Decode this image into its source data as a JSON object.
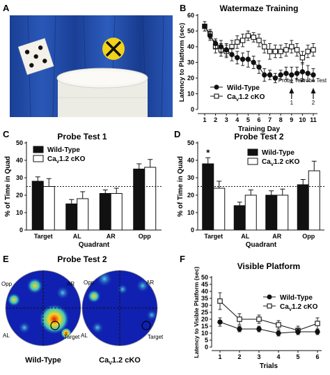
{
  "panel_letters": {
    "A": "A",
    "B": "B",
    "C": "C",
    "D": "D",
    "E": "E",
    "F": "F"
  },
  "colors": {
    "black": "#111111",
    "white": "#ffffff",
    "curtain": "#1f4aa3",
    "cross_sign": "#f2d21a"
  },
  "heatmap": {
    "title": "Probe Test 2",
    "quadrant_labels": {
      "opp": "Opp",
      "ar": "AR",
      "al": "AL",
      "target": "Target"
    },
    "captions": {
      "wt": "Wild-Type",
      "ko_pre": "Ca",
      "ko_sub": "V",
      "ko_post": "1.2 cKO"
    },
    "colors": {
      "background": "#1020b0",
      "hot": "#e21b12",
      "warm": "#f6d61b",
      "mid": "#3cc7c0"
    }
  },
  "chart_data": [
    {
      "id": "B",
      "type": "line",
      "title": "Watermaze Training",
      "xlabel": "Training Day",
      "ylabel": "Latency to Platform (sec)",
      "ylim": [
        0,
        60
      ],
      "xlim": [
        1,
        11
      ],
      "y_ticks": [
        0,
        10,
        20,
        30,
        40,
        50,
        60
      ],
      "x": [
        1,
        1.5,
        2,
        2.5,
        3,
        3.5,
        4,
        4.5,
        5,
        5.5,
        6,
        6.5,
        7,
        7.5,
        8,
        8.5,
        9,
        9.5,
        10,
        10.5,
        11
      ],
      "x_tick_labels": [
        "1",
        "2",
        "3",
        "4",
        "5",
        "6",
        "7",
        "8",
        "9",
        "10",
        "11"
      ],
      "series": [
        {
          "name": "Wild-Type",
          "marker": "filled-circle",
          "values": [
            53,
            47,
            42,
            40,
            38,
            35,
            33,
            32,
            32,
            30,
            27,
            22,
            22,
            20,
            22,
            23,
            22,
            23,
            24,
            23,
            22
          ],
          "errors": [
            3,
            3,
            3,
            4,
            4,
            4,
            4,
            4,
            5,
            4,
            4,
            4,
            3,
            3,
            3,
            4,
            5,
            4,
            6,
            5,
            4
          ]
        },
        {
          "name_pre": "Ca",
          "name_sub": "V",
          "name_post": "1.2 cKO",
          "marker": "open-square",
          "values": [
            53,
            48,
            40,
            38,
            37,
            40,
            43,
            44,
            47,
            46,
            44,
            40,
            37,
            37,
            37,
            38,
            40,
            38,
            33,
            37,
            38
          ],
          "errors": [
            3,
            3,
            4,
            4,
            4,
            4,
            4,
            4,
            3,
            3,
            4,
            4,
            5,
            4,
            4,
            4,
            4,
            4,
            4,
            4,
            4
          ]
        }
      ],
      "annotations": [
        {
          "text_line1": "Probe Test",
          "text_line2": "1",
          "x": 9
        },
        {
          "text_line1": "Probe Test",
          "text_line2": "2",
          "x": 11
        }
      ]
    },
    {
      "id": "C",
      "type": "bar",
      "title": "Probe Test 1",
      "categories": [
        "Target",
        "AL",
        "AR",
        "Opp"
      ],
      "xlabel": "Quadrant",
      "ylabel": "% of Time in Quad",
      "ylim": [
        0,
        50
      ],
      "y_ticks": [
        0,
        10,
        20,
        30,
        40,
        50
      ],
      "chance_line": 25,
      "series": [
        {
          "name": "Wild-Type",
          "fill": "#111111",
          "values": [
            28,
            15,
            21,
            35
          ],
          "errors": [
            2.5,
            2.5,
            2,
            3
          ]
        },
        {
          "name_pre": "Ca",
          "name_sub": "V",
          "name_post": "1.2 cKO",
          "fill": "#ffffff",
          "values": [
            25,
            18,
            21,
            36
          ],
          "errors": [
            4.5,
            4,
            3,
            4.5
          ]
        }
      ]
    },
    {
      "id": "D",
      "type": "bar",
      "title": "Probe Test 2",
      "categories": [
        "Target",
        "AL",
        "AR",
        "Opp"
      ],
      "xlabel": "Quadrant",
      "ylabel": "% of Time in Quad",
      "ylim": [
        0,
        50
      ],
      "y_ticks": [
        0,
        10,
        20,
        30,
        40,
        50
      ],
      "chance_line": 25,
      "significance": [
        {
          "category": "Target",
          "text": "*"
        }
      ],
      "series": [
        {
          "name": "Wild-Type",
          "fill": "#111111",
          "values": [
            38,
            14,
            20,
            26
          ],
          "errors": [
            3.5,
            2,
            2.5,
            3
          ]
        },
        {
          "name_pre": "Ca",
          "name_sub": "V",
          "name_post": "1.2 cKO",
          "fill": "#ffffff",
          "values": [
            24,
            20,
            20,
            34
          ],
          "errors": [
            4,
            3,
            3.5,
            5.5
          ]
        }
      ]
    },
    {
      "id": "F",
      "type": "line",
      "title": "Visible Platform",
      "xlabel": "Trials",
      "ylabel": "Latency to Visible Platform (sec)",
      "ylim": [
        0,
        50
      ],
      "xlim": [
        1,
        6
      ],
      "y_ticks": [
        0,
        5,
        10,
        15,
        20,
        25,
        30,
        35,
        40,
        45,
        50
      ],
      "x": [
        1,
        2,
        3,
        4,
        5,
        6
      ],
      "x_tick_labels": [
        "1",
        "2",
        "3",
        "4",
        "5",
        "6"
      ],
      "series": [
        {
          "name": "Wild-Type",
          "marker": "filled-circle",
          "values": [
            18,
            13,
            13,
            10,
            11,
            11
          ],
          "errors": [
            3,
            2,
            2,
            2,
            2,
            2
          ]
        },
        {
          "name_pre": "Ca",
          "name_sub": "V",
          "name_post": "1.2 cKO",
          "marker": "open-square",
          "values": [
            33,
            20,
            20,
            16,
            12,
            17
          ],
          "errors": [
            6,
            4,
            3,
            3,
            3,
            4
          ]
        }
      ]
    }
  ]
}
